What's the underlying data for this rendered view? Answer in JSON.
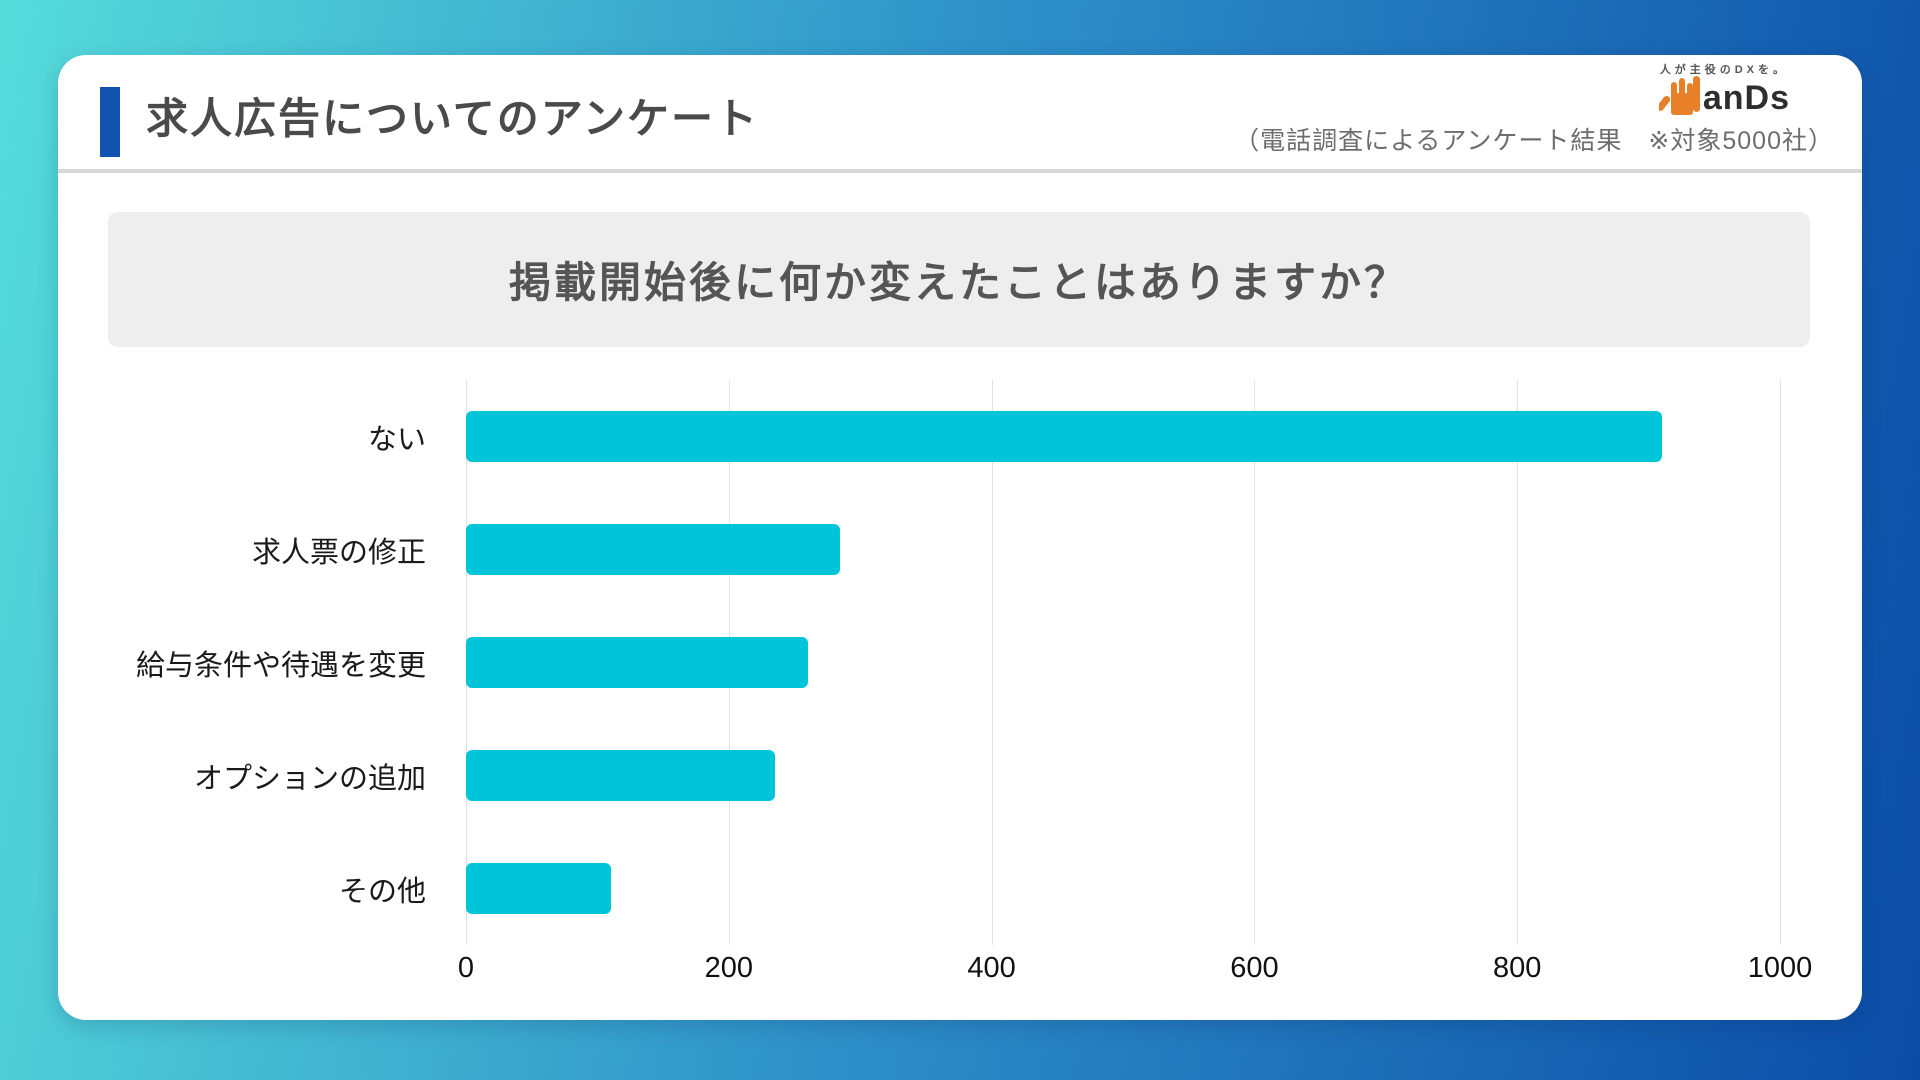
{
  "header": {
    "title": "求人広告についてのアンケート",
    "note": "（電話調査によるアンケート結果　※対象5000社）",
    "logo": {
      "tagline": "人が主役のDXを。",
      "text": "anDs"
    }
  },
  "chart_data": {
    "type": "bar",
    "orientation": "horizontal",
    "title": "掲載開始後に何か変えたことはありますか？",
    "categories": [
      "ない",
      "求人票の修正",
      "給与条件や待遇を変更",
      "オプションの追加",
      "その他"
    ],
    "values": [
      910,
      285,
      260,
      235,
      110
    ],
    "xticks": [
      0,
      200,
      400,
      600,
      800,
      1000
    ],
    "xlim": [
      0,
      1000
    ],
    "xlabel": "",
    "ylabel": "",
    "grid": true,
    "legend": false,
    "bar_color": "#00c5d9"
  },
  "colors": {
    "accent": "#1353b0",
    "bar": "#00c5d9",
    "banner": "#eeeeee",
    "card": "#ffffff",
    "separator": "#d9d9d9",
    "bg_left": "#55dcda",
    "bg_right": "#0b4ca7",
    "logo_orange": "#e8802a"
  }
}
